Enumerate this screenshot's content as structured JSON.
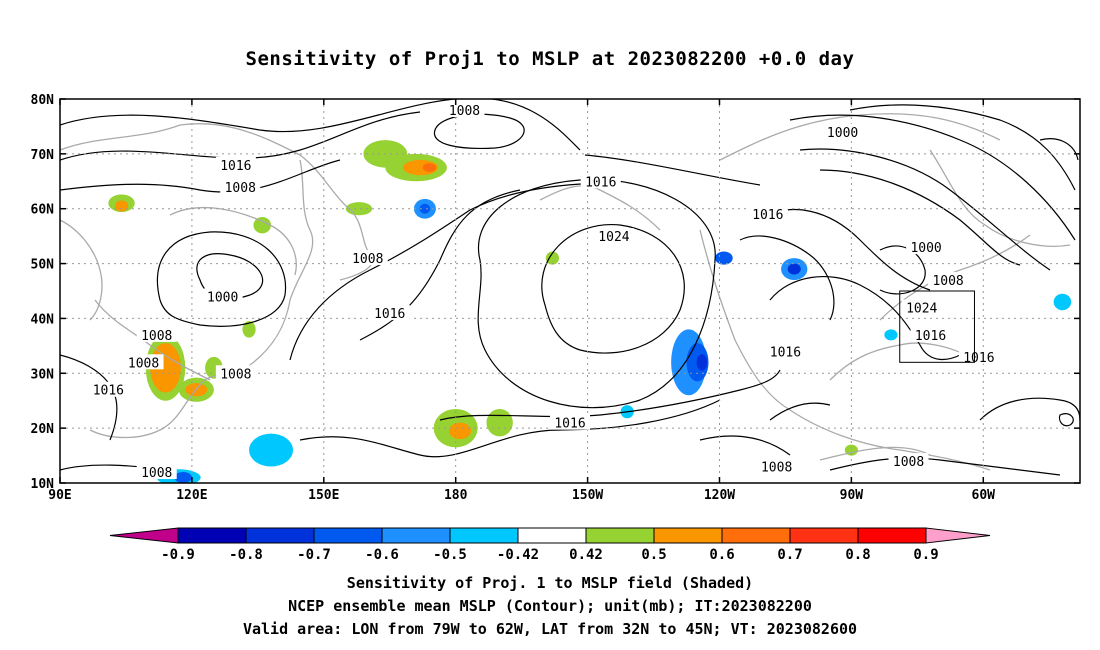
{
  "title": "Sensitivity of Proj1 to MSLP at 2023082200 +0.0 day",
  "captions": [
    "Sensitivity of Proj. 1 to MSLP field (Shaded)",
    "NCEP ensemble mean MSLP (Contour); unit(mb); IT:2023082200",
    "Valid area: LON from 79W to 62W, LAT from 32N to 45N; VT: 2023082600"
  ],
  "chart_data": {
    "type": "heatmap",
    "x_ticks": [
      {
        "lon": 90,
        "label": "90E"
      },
      {
        "lon": 120,
        "label": "120E"
      },
      {
        "lon": 150,
        "label": "150E"
      },
      {
        "lon": 180,
        "label": "180"
      },
      {
        "lon": 210,
        "label": "150W"
      },
      {
        "lon": 240,
        "label": "120W"
      },
      {
        "lon": 270,
        "label": "90W"
      },
      {
        "lon": 300,
        "label": "60W"
      }
    ],
    "y_ticks": [
      {
        "lat": 10,
        "label": "10N"
      },
      {
        "lat": 20,
        "label": "20N"
      },
      {
        "lat": 30,
        "label": "30N"
      },
      {
        "lat": 40,
        "label": "40N"
      },
      {
        "lat": 50,
        "label": "50N"
      },
      {
        "lat": 60,
        "label": "60N"
      },
      {
        "lat": 70,
        "label": "70N"
      },
      {
        "lat": 80,
        "label": "80N"
      }
    ],
    "xlim": [
      90,
      322
    ],
    "ylim": [
      10,
      80
    ],
    "grid": true,
    "colorbar": {
      "colors": [
        "#c0008a",
        "#0000b4",
        "#0032dc",
        "#005af0",
        "#1e90ff",
        "#00c8ff",
        "#ffffff",
        "#96d232",
        "#fa9600",
        "#ff6e0a",
        "#ff3214",
        "#ff0000",
        "#ffa0cc"
      ],
      "labels": [
        "-0.9",
        "-0.8",
        "-0.7",
        "-0.6",
        "-0.5",
        "-0.42",
        "0.42",
        "0.5",
        "0.6",
        "0.7",
        "0.8",
        "0.9"
      ]
    },
    "contour_labels": [
      {
        "text": "1008",
        "lon": 182,
        "lat": 78
      },
      {
        "text": "1000",
        "lon": 268,
        "lat": 74
      },
      {
        "text": "1016",
        "lon": 130,
        "lat": 68
      },
      {
        "text": "1008",
        "lon": 131,
        "lat": 64
      },
      {
        "text": "1016",
        "lon": 213,
        "lat": 65
      },
      {
        "text": "1016",
        "lon": 251,
        "lat": 59
      },
      {
        "text": "1024",
        "lon": 216,
        "lat": 55
      },
      {
        "text": "1000",
        "lon": 287,
        "lat": 53
      },
      {
        "text": "1008",
        "lon": 160,
        "lat": 51
      },
      {
        "text": "1008",
        "lon": 292,
        "lat": 47
      },
      {
        "text": "1000",
        "lon": 127,
        "lat": 44
      },
      {
        "text": "1024",
        "lon": 286,
        "lat": 42
      },
      {
        "text": "1016",
        "lon": 165,
        "lat": 41
      },
      {
        "text": "1008",
        "lon": 112,
        "lat": 37
      },
      {
        "text": "1016",
        "lon": 288,
        "lat": 37
      },
      {
        "text": "1016",
        "lon": 255,
        "lat": 34
      },
      {
        "text": "1008",
        "lon": 109,
        "lat": 32
      },
      {
        "text": "1016",
        "lon": 299,
        "lat": 33
      },
      {
        "text": "1008",
        "lon": 130,
        "lat": 30
      },
      {
        "text": "1016",
        "lon": 101,
        "lat": 27
      },
      {
        "text": "1016",
        "lon": 206,
        "lat": 21
      },
      {
        "text": "1008",
        "lon": 253,
        "lat": 13
      },
      {
        "text": "1008",
        "lon": 112,
        "lat": 12
      },
      {
        "text": "1008",
        "lon": 283,
        "lat": 14
      }
    ],
    "valid_area": {
      "lon_min": 281,
      "lon_max": 298,
      "lat_min": 32,
      "lat_max": 45
    },
    "shaded_positive": [
      {
        "lon": 164,
        "lat": 70,
        "rx": 5,
        "ry": 2.5,
        "level": 0.5
      },
      {
        "lon": 171,
        "lat": 67.5,
        "rx": 7,
        "ry": 2.5,
        "level": 0.5
      },
      {
        "lon": 172,
        "lat": 67.5,
        "rx": 4,
        "ry": 1.4,
        "level": 0.6
      },
      {
        "lon": 174,
        "lat": 67.5,
        "rx": 1.5,
        "ry": 0.8,
        "level": 0.7
      },
      {
        "lon": 104,
        "lat": 61,
        "rx": 3,
        "ry": 1.6,
        "level": 0.5
      },
      {
        "lon": 104,
        "lat": 60.5,
        "rx": 1.5,
        "ry": 1.0,
        "level": 0.6
      },
      {
        "lon": 158,
        "lat": 60,
        "rx": 3,
        "ry": 1.2,
        "level": 0.5
      },
      {
        "lon": 114,
        "lat": 31,
        "rx": 4.5,
        "ry": 6,
        "level": 0.5
      },
      {
        "lon": 114,
        "lat": 31,
        "rx": 3.5,
        "ry": 4.5,
        "level": 0.6
      },
      {
        "lon": 121,
        "lat": 27,
        "rx": 4,
        "ry": 2.2,
        "level": 0.5
      },
      {
        "lon": 121,
        "lat": 27,
        "rx": 2.5,
        "ry": 1.2,
        "level": 0.6
      },
      {
        "lon": 125,
        "lat": 31,
        "rx": 2,
        "ry": 2,
        "level": 0.5
      },
      {
        "lon": 180,
        "lat": 20,
        "rx": 5,
        "ry": 3.5,
        "level": 0.5
      },
      {
        "lon": 181,
        "lat": 19.5,
        "rx": 2.5,
        "ry": 1.5,
        "level": 0.6
      },
      {
        "lon": 190,
        "lat": 21,
        "rx": 3,
        "ry": 2.5,
        "level": 0.5
      },
      {
        "lon": 136,
        "lat": 57,
        "rx": 2,
        "ry": 1.5,
        "level": 0.5
      },
      {
        "lon": 133,
        "lat": 38,
        "rx": 1.5,
        "ry": 1.5,
        "level": 0.5
      },
      {
        "lon": 202,
        "lat": 51,
        "rx": 1.5,
        "ry": 1.2,
        "level": 0.5
      },
      {
        "lon": 270,
        "lat": 16,
        "rx": 1.5,
        "ry": 1,
        "level": 0.5
      }
    ],
    "shaded_negative": [
      {
        "lon": 173,
        "lat": 60,
        "rx": 2.5,
        "ry": 1.8,
        "level": -0.5
      },
      {
        "lon": 173,
        "lat": 60,
        "rx": 1.2,
        "ry": 0.9,
        "level": -0.6
      },
      {
        "lon": 233,
        "lat": 32,
        "rx": 4,
        "ry": 6,
        "level": -0.5
      },
      {
        "lon": 235,
        "lat": 32,
        "rx": 2.5,
        "ry": 3.5,
        "level": -0.6
      },
      {
        "lon": 236,
        "lat": 32,
        "rx": 1.2,
        "ry": 1.5,
        "level": -0.7
      },
      {
        "lon": 257,
        "lat": 49,
        "rx": 3,
        "ry": 2,
        "level": -0.5
      },
      {
        "lon": 257,
        "lat": 49,
        "rx": 1.5,
        "ry": 1,
        "level": -0.7
      },
      {
        "lon": 241,
        "lat": 51,
        "rx": 2,
        "ry": 1.2,
        "level": -0.6
      },
      {
        "lon": 138,
        "lat": 16,
        "rx": 5,
        "ry": 3,
        "level": -0.42
      },
      {
        "lon": 117,
        "lat": 11,
        "rx": 5,
        "ry": 1.5,
        "level": -0.42
      },
      {
        "lon": 118,
        "lat": 11,
        "rx": 2,
        "ry": 1,
        "level": -0.6
      },
      {
        "lon": 318,
        "lat": 43,
        "rx": 2,
        "ry": 1.5,
        "level": -0.42
      },
      {
        "lon": 279,
        "lat": 37,
        "rx": 1.5,
        "ry": 1,
        "level": -0.42
      },
      {
        "lon": 219,
        "lat": 23,
        "rx": 1.5,
        "ry": 1.2,
        "level": -0.42
      }
    ]
  }
}
